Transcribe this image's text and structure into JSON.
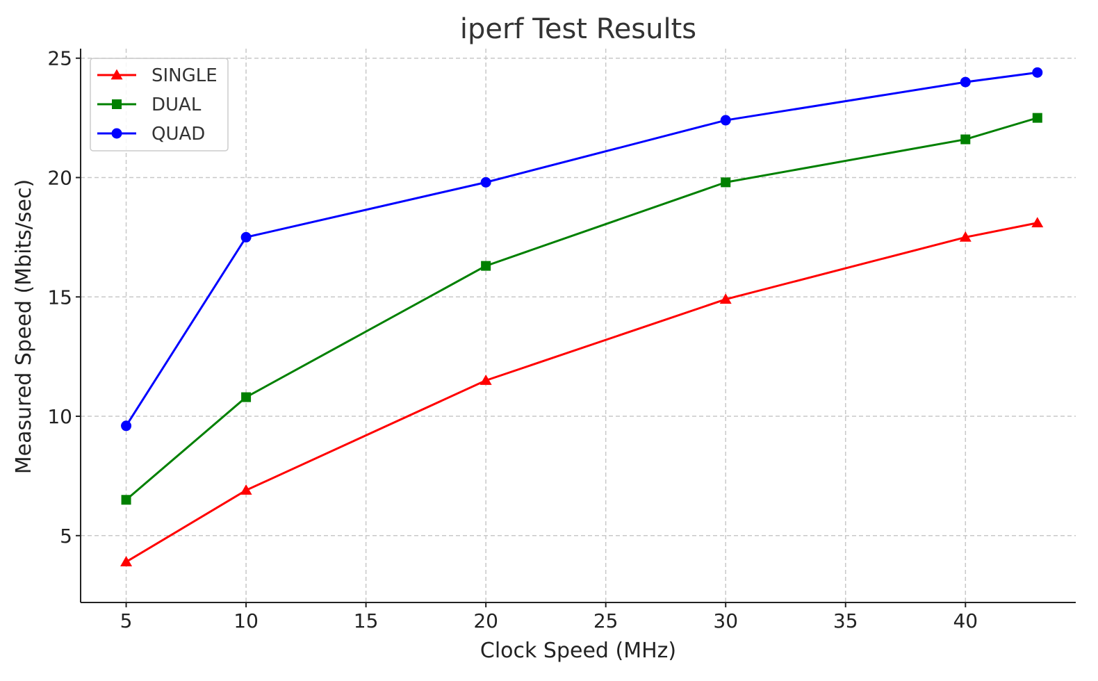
{
  "chart_data": {
    "type": "line",
    "title": "iperf Test Results",
    "xlabel": "Clock Speed (MHz)",
    "ylabel": "Measured Speed (Mbits/sec)",
    "xlim": [
      3.1,
      44.6
    ],
    "ylim": [
      2.2,
      25.4
    ],
    "x_ticks": [
      5,
      10,
      15,
      20,
      25,
      30,
      35,
      40
    ],
    "y_ticks": [
      5,
      10,
      15,
      20,
      25
    ],
    "x_tick_labels": [
      "5",
      "10",
      "15",
      "20",
      "25",
      "30",
      "35",
      "40"
    ],
    "y_tick_labels": [
      "5",
      "10",
      "15",
      "20",
      "25"
    ],
    "grid": true,
    "legend_position": "top-left",
    "x": [
      5,
      10,
      20,
      30,
      40,
      43
    ],
    "series": [
      {
        "name": "SINGLE",
        "color": "#ff0000",
        "marker": "triangle",
        "values": [
          3.9,
          6.9,
          11.5,
          14.9,
          17.5,
          18.1
        ]
      },
      {
        "name": "DUAL",
        "color": "#008000",
        "marker": "square",
        "values": [
          6.5,
          10.8,
          16.3,
          19.8,
          21.6,
          22.5
        ]
      },
      {
        "name": "QUAD",
        "color": "#0000ff",
        "marker": "circle",
        "values": [
          9.6,
          17.5,
          19.8,
          22.4,
          24.0,
          24.4
        ]
      }
    ]
  }
}
